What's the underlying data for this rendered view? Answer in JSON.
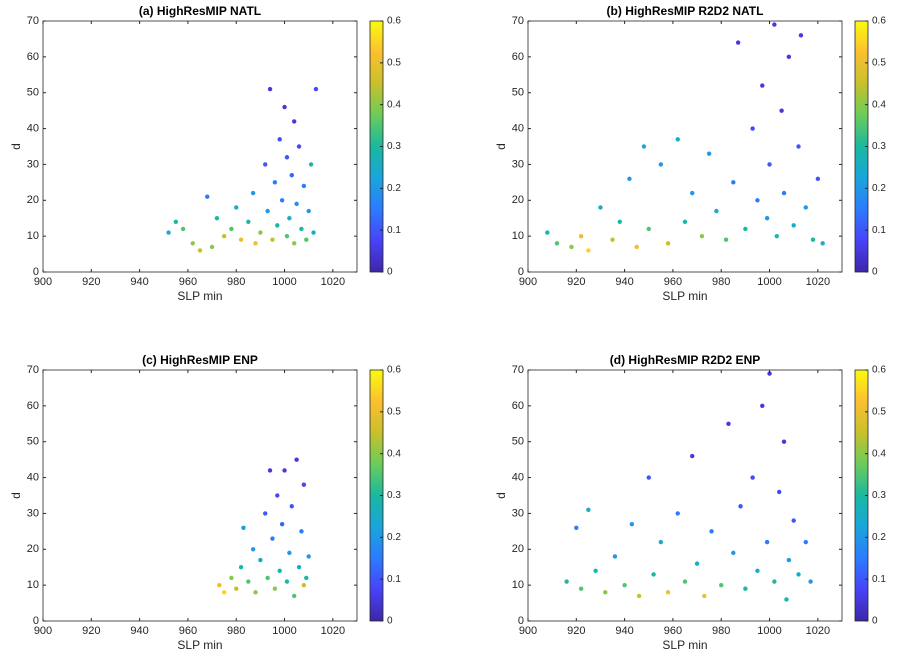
{
  "chart_data": [
    {
      "type": "scatter",
      "title": "(a) HighResMIP NATL",
      "xlabel": "SLP min",
      "ylabel": "d",
      "xlim": [
        900,
        1030
      ],
      "ylim": [
        0,
        70
      ],
      "xticks": [
        900,
        920,
        940,
        960,
        980,
        1000,
        1020
      ],
      "yticks": [
        0,
        10,
        20,
        30,
        40,
        50,
        60,
        70
      ],
      "colormap": "parula",
      "clim": [
        0,
        0.6
      ],
      "cticks": [
        0,
        0.1,
        0.2,
        0.3,
        0.4,
        0.5,
        0.6
      ],
      "box": true,
      "x": [
        952,
        955,
        958,
        962,
        965,
        968,
        970,
        972,
        975,
        978,
        980,
        982,
        985,
        987,
        988,
        990,
        992,
        993,
        994,
        995,
        996,
        997,
        998,
        999,
        1000,
        1001,
        1001,
        1002,
        1003,
        1004,
        1004,
        1005,
        1006,
        1007,
        1008,
        1009,
        1010,
        1011,
        1012,
        1013
      ],
      "y": [
        11,
        14,
        12,
        8,
        6,
        21,
        7,
        15,
        10,
        12,
        18,
        9,
        14,
        22,
        8,
        11,
        30,
        17,
        51,
        9,
        25,
        13,
        37,
        20,
        46,
        10,
        32,
        15,
        27,
        42,
        8,
        19,
        35,
        12,
        24,
        9,
        17,
        30,
        11,
        51
      ],
      "c": [
        0.25,
        0.3,
        0.35,
        0.4,
        0.45,
        0.15,
        0.4,
        0.3,
        0.45,
        0.35,
        0.25,
        0.5,
        0.3,
        0.2,
        0.5,
        0.4,
        0.1,
        0.2,
        0.05,
        0.45,
        0.15,
        0.3,
        0.08,
        0.15,
        0.05,
        0.35,
        0.1,
        0.25,
        0.12,
        0.05,
        0.4,
        0.18,
        0.08,
        0.3,
        0.15,
        0.35,
        0.2,
        0.3,
        0.25,
        0.08
      ]
    },
    {
      "type": "scatter",
      "title": "(b) HighResMIP R2D2 NATL",
      "xlabel": "SLP min",
      "ylabel": "d",
      "xlim": [
        900,
        1030
      ],
      "ylim": [
        0,
        70
      ],
      "xticks": [
        900,
        920,
        940,
        960,
        980,
        1000,
        1020
      ],
      "yticks": [
        0,
        10,
        20,
        30,
        40,
        50,
        60,
        70
      ],
      "colormap": "parula",
      "clim": [
        0,
        0.6
      ],
      "cticks": [
        0,
        0.1,
        0.2,
        0.3,
        0.4,
        0.5,
        0.6
      ],
      "box": true,
      "x": [
        908,
        912,
        918,
        922,
        925,
        930,
        935,
        938,
        942,
        945,
        948,
        950,
        955,
        958,
        962,
        965,
        968,
        972,
        975,
        978,
        982,
        985,
        987,
        990,
        993,
        995,
        997,
        999,
        1000,
        1002,
        1003,
        1005,
        1006,
        1008,
        1010,
        1012,
        1013,
        1015,
        1018,
        1020,
        1022
      ],
      "y": [
        11,
        8,
        7,
        10,
        6,
        18,
        9,
        14,
        26,
        7,
        35,
        12,
        30,
        8,
        37,
        14,
        22,
        10,
        33,
        17,
        9,
        25,
        64,
        12,
        40,
        20,
        52,
        15,
        30,
        69,
        10,
        45,
        22,
        60,
        13,
        35,
        66,
        18,
        9,
        26,
        8
      ],
      "c": [
        0.3,
        0.35,
        0.4,
        0.5,
        0.55,
        0.25,
        0.45,
        0.3,
        0.2,
        0.5,
        0.25,
        0.35,
        0.2,
        0.45,
        0.25,
        0.3,
        0.2,
        0.4,
        0.2,
        0.25,
        0.35,
        0.15,
        0.05,
        0.3,
        0.08,
        0.15,
        0.05,
        0.2,
        0.1,
        0.05,
        0.3,
        0.05,
        0.15,
        0.05,
        0.25,
        0.1,
        0.05,
        0.2,
        0.3,
        0.1,
        0.25
      ]
    },
    {
      "type": "scatter",
      "title": "(c) HighResMIP ENP",
      "xlabel": "SLP min",
      "ylabel": "d",
      "xlim": [
        900,
        1030
      ],
      "ylim": [
        0,
        70
      ],
      "xticks": [
        900,
        920,
        940,
        960,
        980,
        1000,
        1020
      ],
      "yticks": [
        0,
        10,
        20,
        30,
        40,
        50,
        60,
        70
      ],
      "colormap": "parula",
      "clim": [
        0,
        0.6
      ],
      "cticks": [
        0,
        0.1,
        0.2,
        0.3,
        0.4,
        0.5,
        0.6
      ],
      "box": true,
      "x": [
        973,
        975,
        978,
        980,
        982,
        983,
        985,
        987,
        988,
        990,
        992,
        993,
        994,
        995,
        996,
        997,
        998,
        999,
        1000,
        1001,
        1002,
        1003,
        1004,
        1005,
        1006,
        1007,
        1008,
        1008,
        1009,
        1010
      ],
      "y": [
        10,
        8,
        12,
        9,
        15,
        26,
        11,
        20,
        8,
        17,
        30,
        12,
        42,
        23,
        9,
        35,
        14,
        27,
        42,
        11,
        19,
        32,
        7,
        45,
        15,
        25,
        38,
        10,
        12,
        18
      ],
      "c": [
        0.5,
        0.55,
        0.4,
        0.45,
        0.3,
        0.2,
        0.35,
        0.2,
        0.4,
        0.25,
        0.1,
        0.35,
        0.05,
        0.15,
        0.4,
        0.08,
        0.3,
        0.12,
        0.05,
        0.3,
        0.2,
        0.1,
        0.35,
        0.05,
        0.25,
        0.15,
        0.08,
        0.45,
        0.3,
        0.2
      ]
    },
    {
      "type": "scatter",
      "title": "(d) HighResMIP R2D2 ENP",
      "xlabel": "SLP min",
      "ylabel": "d",
      "xlim": [
        900,
        1030
      ],
      "ylim": [
        0,
        70
      ],
      "xticks": [
        900,
        920,
        940,
        960,
        980,
        1000,
        1020
      ],
      "yticks": [
        0,
        10,
        20,
        30,
        40,
        50,
        60,
        70
      ],
      "colormap": "parula",
      "clim": [
        0,
        0.6
      ],
      "cticks": [
        0,
        0.1,
        0.2,
        0.3,
        0.4,
        0.5,
        0.6
      ],
      "box": true,
      "x": [
        916,
        920,
        922,
        925,
        928,
        932,
        936,
        940,
        943,
        946,
        950,
        952,
        955,
        958,
        962,
        965,
        968,
        970,
        973,
        976,
        980,
        983,
        985,
        988,
        990,
        993,
        995,
        997,
        999,
        1000,
        1002,
        1004,
        1006,
        1007,
        1008,
        1010,
        1012,
        1015,
        1017
      ],
      "y": [
        11,
        26,
        9,
        31,
        14,
        8,
        18,
        10,
        27,
        7,
        40,
        13,
        22,
        8,
        30,
        11,
        46,
        16,
        7,
        25,
        10,
        55,
        19,
        32,
        9,
        40,
        14,
        60,
        22,
        69,
        11,
        36,
        50,
        6,
        17,
        28,
        13,
        22,
        11
      ],
      "c": [
        0.3,
        0.15,
        0.35,
        0.25,
        0.3,
        0.4,
        0.2,
        0.35,
        0.2,
        0.45,
        0.1,
        0.3,
        0.25,
        0.5,
        0.15,
        0.35,
        0.05,
        0.25,
        0.5,
        0.15,
        0.35,
        0.05,
        0.2,
        0.1,
        0.3,
        0.08,
        0.25,
        0.05,
        0.15,
        0.05,
        0.3,
        0.08,
        0.05,
        0.3,
        0.2,
        0.1,
        0.25,
        0.15,
        0.2
      ]
    }
  ]
}
